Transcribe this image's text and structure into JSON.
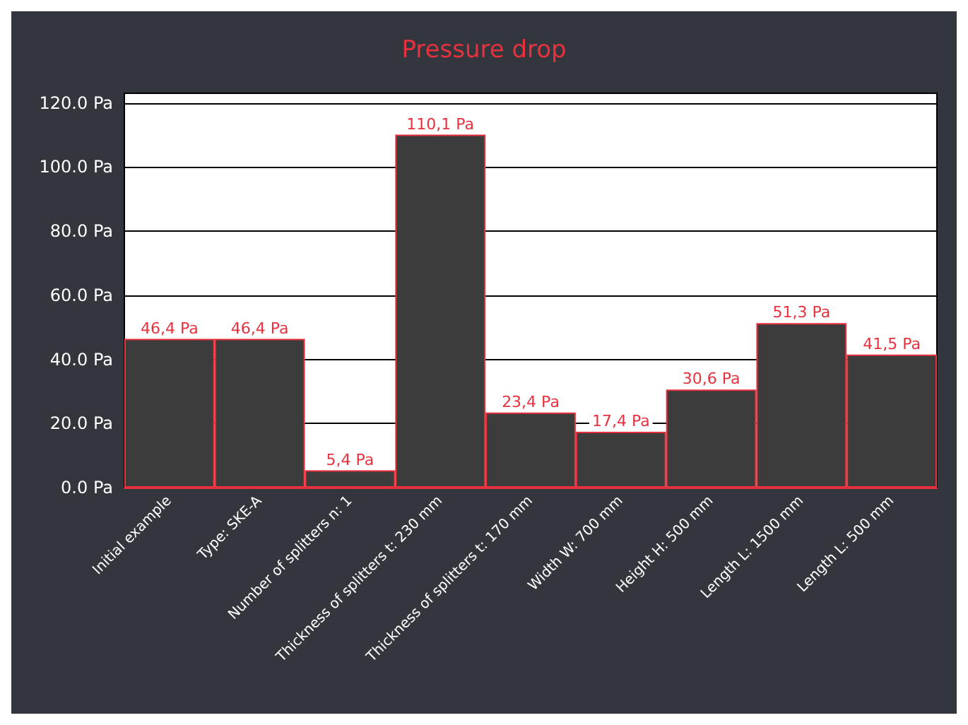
{
  "chart_data": {
    "type": "bar",
    "title": "Pressure drop",
    "categories": [
      "Initial example",
      "Type: SKE-A",
      "Number of splitters n: 1",
      "Thickness of splitters t: 230 mm",
      "Thickness of splitters t: 170 mm",
      "Width W: 700 mm",
      "Height H: 500 mm",
      "Length L: 1500 mm",
      "Length L: 500 mm"
    ],
    "values": [
      46.4,
      46.4,
      5.4,
      110.1,
      23.4,
      17.4,
      30.6,
      51.3,
      41.5
    ],
    "value_labels": [
      "46,4 Pa",
      "46,4 Pa",
      "5,4 Pa",
      "110,1 Pa",
      "23,4 Pa",
      "17,4 Pa",
      "30,6 Pa",
      "51,3 Pa",
      "41,5 Pa"
    ],
    "color": "#3d3c3d",
    "ylim": [
      0,
      123
    ],
    "yticks": [
      {
        "value": 0,
        "label": "0.0 Pa"
      },
      {
        "value": 20,
        "label": "20.0 Pa"
      },
      {
        "value": 40,
        "label": "40.0 Pa"
      },
      {
        "value": 60,
        "label": "60.0 Pa"
      },
      {
        "value": 80,
        "label": "80.0 Pa"
      },
      {
        "value": 100,
        "label": "100.0 Pa"
      },
      {
        "value": 120,
        "label": "120.0 Pa"
      }
    ],
    "grid": "y"
  }
}
